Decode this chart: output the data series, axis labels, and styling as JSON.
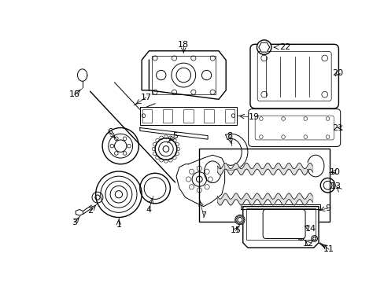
{
  "background_color": "#ffffff",
  "line_color": "#000000",
  "font_size": 8,
  "fig_width": 4.89,
  "fig_height": 3.6,
  "dpi": 100
}
